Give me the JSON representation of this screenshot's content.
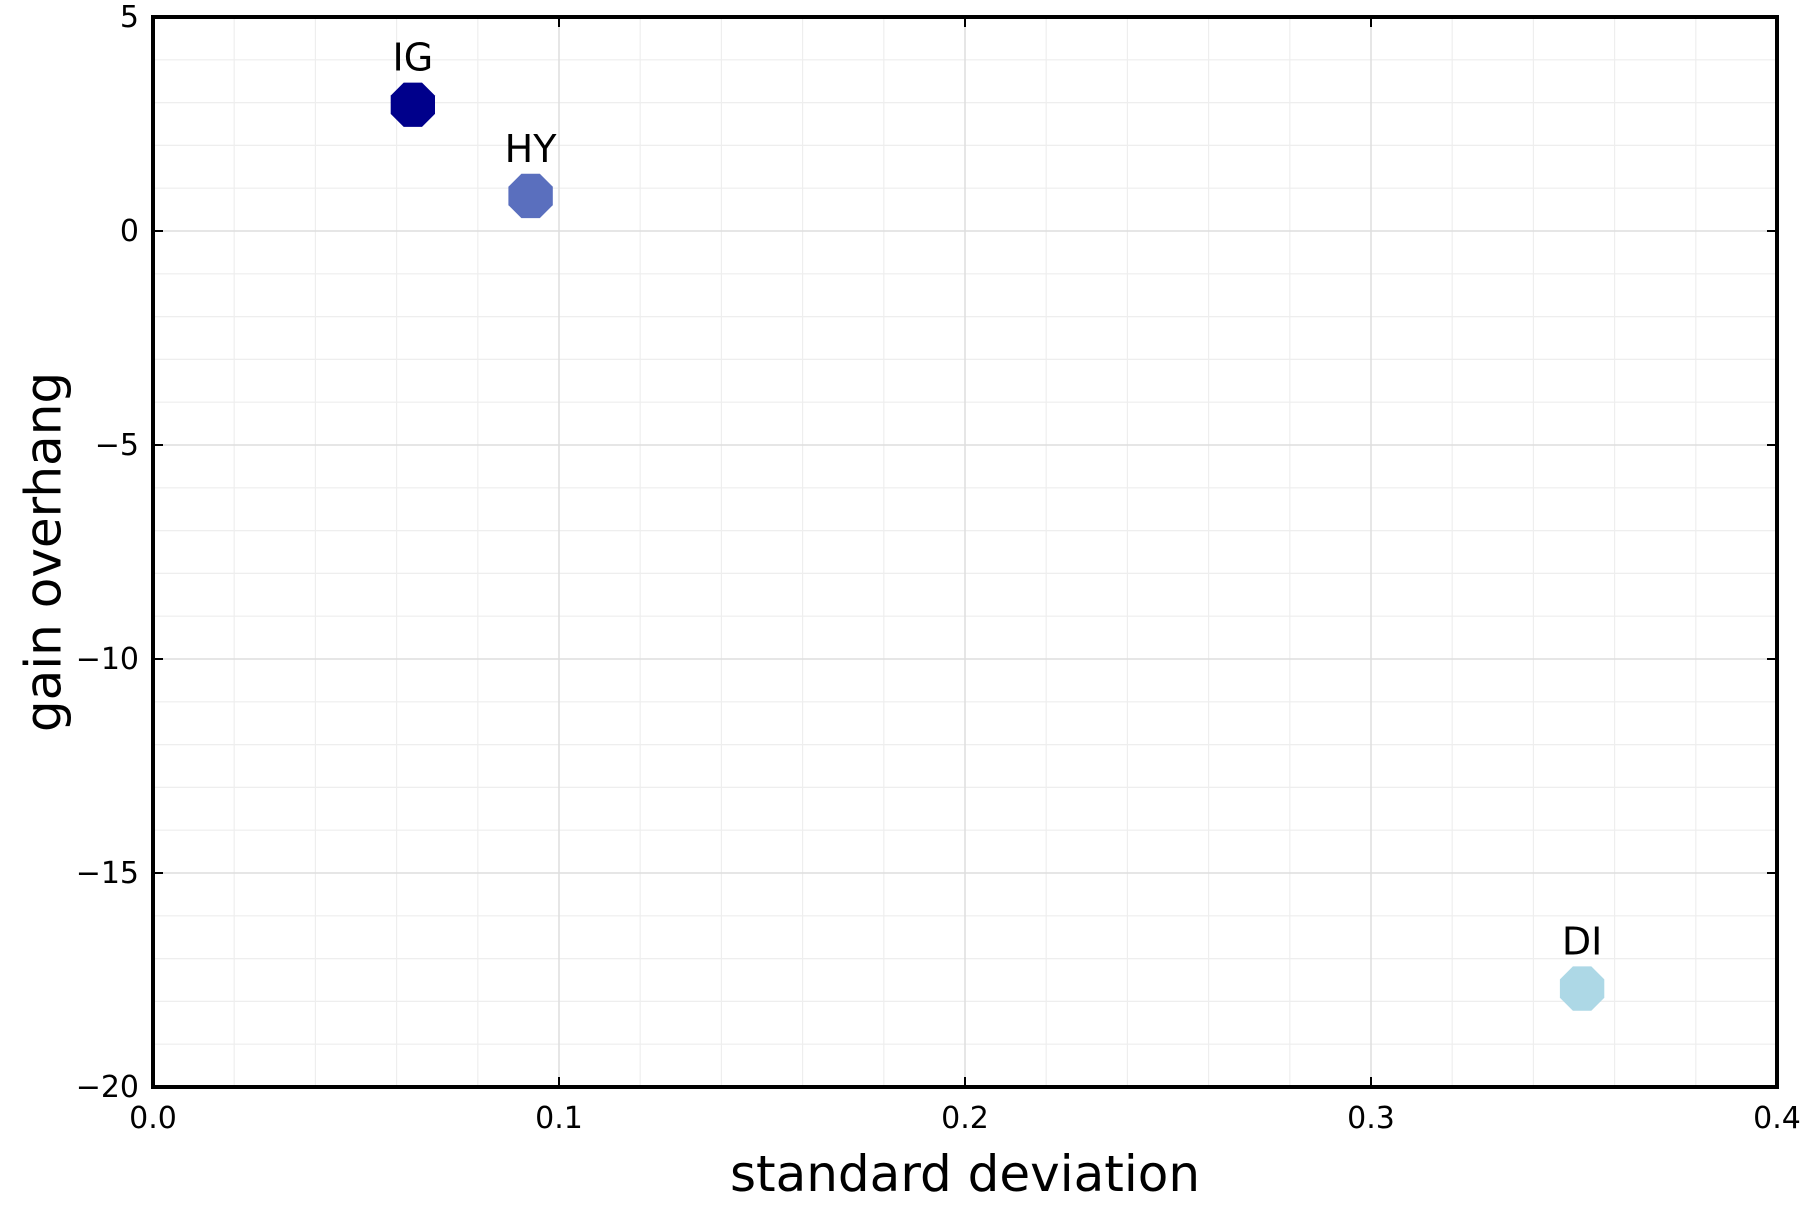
{
  "chart_data": {
    "type": "scatter",
    "xlabel": "standard deviation",
    "ylabel": "gain overhang",
    "xlim": [
      0.0,
      0.4
    ],
    "ylim": [
      -20,
      5
    ],
    "x_ticks": [
      0.0,
      0.1,
      0.2,
      0.3,
      0.4
    ],
    "x_tick_labels": [
      "0.0",
      "0.1",
      "0.2",
      "0.3",
      "0.4"
    ],
    "y_ticks": [
      5,
      0,
      -5,
      -10,
      -15,
      -20
    ],
    "y_tick_labels": [
      "5",
      "0",
      "−5",
      "−10",
      "−15",
      "−20"
    ],
    "grid": true,
    "minor_grid": true,
    "marker": "octagon",
    "points": [
      {
        "label": "IG",
        "x": 0.064,
        "y": 2.95,
        "color": "#00008b"
      },
      {
        "label": "HY",
        "x": 0.093,
        "y": 0.82,
        "color": "#5a6fbe"
      },
      {
        "label": "DI",
        "x": 0.352,
        "y": -17.7,
        "color": "#add8e6"
      }
    ]
  }
}
